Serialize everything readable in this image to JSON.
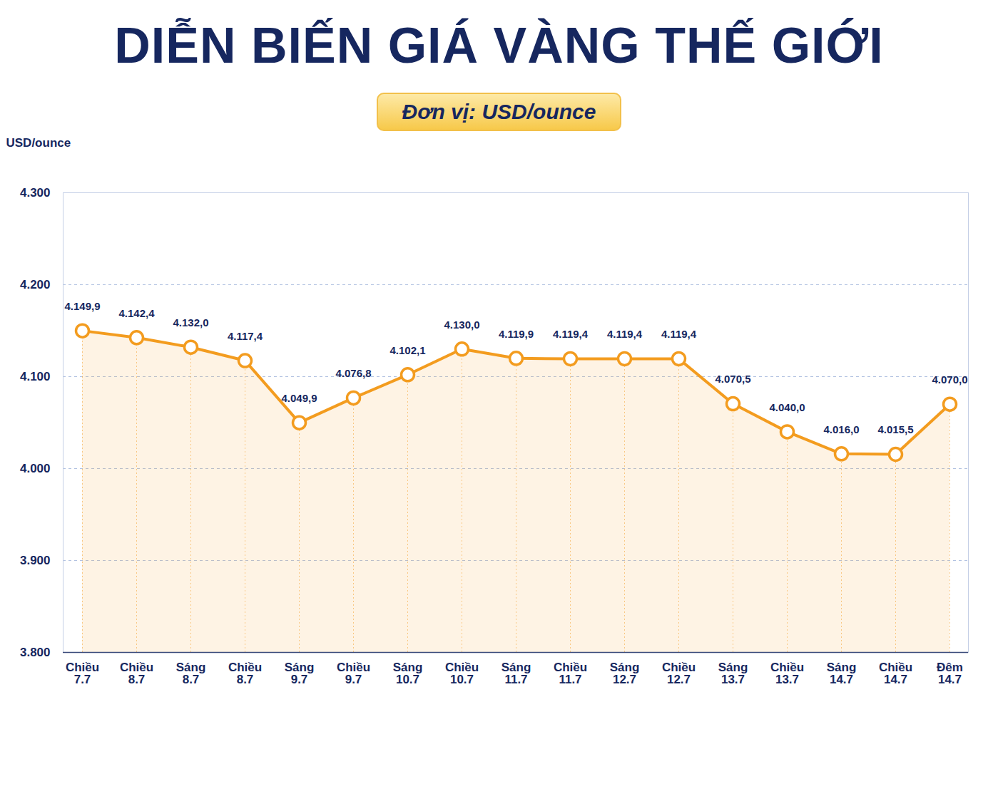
{
  "chart_data": {
    "type": "line",
    "title": "DIỄN BIẾN GIÁ VÀNG THẾ GIỚI",
    "subtitle": "Đơn vị: USD/ounce",
    "ylabel": "USD/ounce",
    "categories": [
      "Chiều 7.7",
      "Chiều 8.7",
      "Sáng 8.7",
      "Chiều 8.7",
      "Sáng 9.7",
      "Chiều 9.7",
      "Sáng 10.7",
      "Chiều 10.7",
      "Sáng 11.7",
      "Chiều 11.7",
      "Sáng 12.7",
      "Chiều 12.7",
      "Sáng 13.7",
      "Chiều 13.7",
      "Sáng 14.7",
      "Chiều 14.7",
      "Đêm 14.7"
    ],
    "values": [
      4149.9,
      4142.4,
      4132.0,
      4117.4,
      4049.9,
      4076.8,
      4102.1,
      4130.0,
      4119.9,
      4119.4,
      4119.4,
      4119.4,
      4070.5,
      4040.0,
      4016.0,
      4015.5,
      4070.0
    ],
    "value_labels": [
      "4.149,9",
      "4.142,4",
      "4.132,0",
      "4.117,4",
      "4.049,9",
      "4.076,8",
      "4.102,1",
      "4.130,0",
      "4.119,9",
      "4.119,4",
      "4.119,4",
      "4.119,4",
      "4.070,5",
      "4.040,0",
      "4.016,0",
      "4.015,5",
      "4.070,0"
    ],
    "color": "#f39c1f",
    "marker": "circle",
    "data_labels": true,
    "grid": true,
    "ylim": [
      3800,
      4300
    ],
    "yticks": [
      {
        "value": 3800,
        "label": "3.800"
      },
      {
        "value": 3900,
        "label": "3.900"
      },
      {
        "value": 4000,
        "label": "4.000"
      },
      {
        "value": 4100,
        "label": "4.100"
      },
      {
        "value": 4200,
        "label": "4.200"
      },
      {
        "value": 4300,
        "label": "4.300"
      }
    ]
  }
}
